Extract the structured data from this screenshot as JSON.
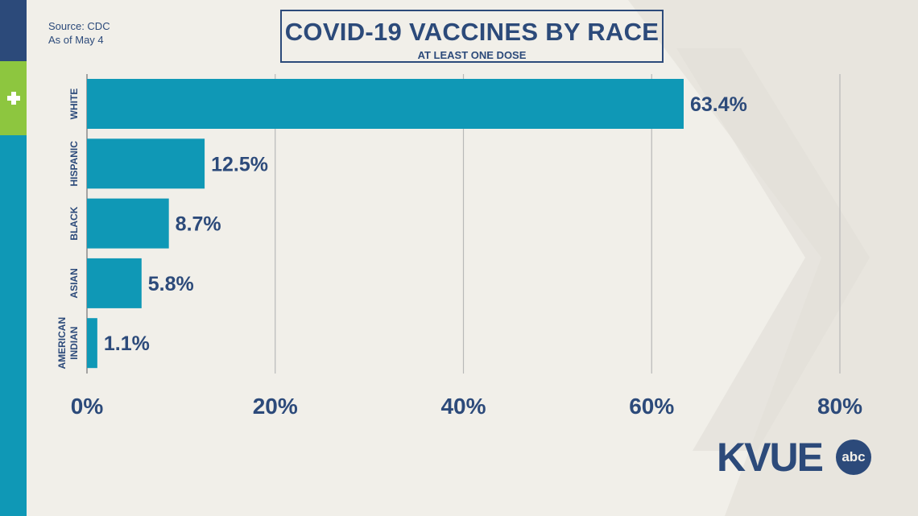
{
  "source": {
    "line1": "Source: CDC",
    "line2": "As of May 4"
  },
  "header": {
    "title": "COVID-19 VACCINES BY RACE",
    "subtitle": "AT LEAST ONE DOSE"
  },
  "logo": {
    "text": "KVUE",
    "badge": "abc"
  },
  "colors": {
    "bar": "#0f98b6",
    "navy": "#2c4a7a",
    "green": "#8dc63f",
    "background": "#f1efe9"
  },
  "icons": {
    "side": "plus-icon"
  },
  "chart_data": {
    "type": "bar",
    "orientation": "horizontal",
    "categories": [
      [
        "WHITE"
      ],
      [
        "HISPANIC"
      ],
      [
        "BLACK"
      ],
      [
        "ASIAN"
      ],
      [
        "AMERICAN",
        "INDIAN"
      ]
    ],
    "values": [
      63.4,
      12.5,
      8.7,
      5.8,
      1.1
    ],
    "value_labels": [
      "63.4%",
      "12.5%",
      "8.7%",
      "5.8%",
      "1.1%"
    ],
    "xlim": [
      0,
      80
    ],
    "xticks": [
      0,
      20,
      40,
      60,
      80
    ],
    "xtick_labels": [
      "0%",
      "20%",
      "40%",
      "60%",
      "80%"
    ],
    "grid": true
  }
}
